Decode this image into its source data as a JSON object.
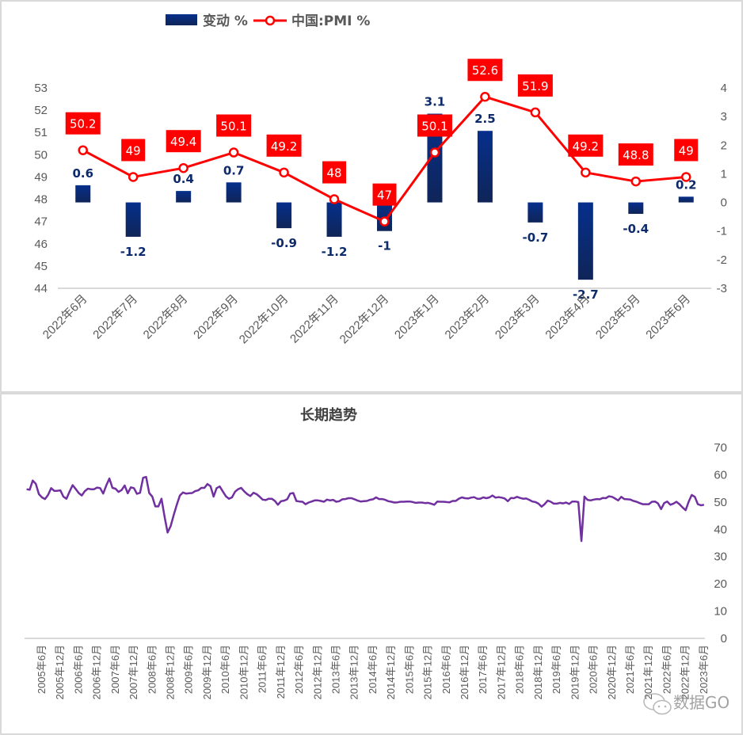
{
  "chart_data": [
    {
      "type": "bar+line",
      "title": "",
      "legend": {
        "position": "top-center",
        "entries": [
          {
            "name": "变动 %",
            "kind": "bar",
            "color": "#0d2a6b"
          },
          {
            "name": "中国:PMI %",
            "kind": "line-marker",
            "color": "#ff0000"
          }
        ]
      },
      "categories": [
        "2022年6月",
        "2022年7月",
        "2022年8月",
        "2022年9月",
        "2022年10月",
        "2022年11月",
        "2022年12月",
        "2023年1月",
        "2023年2月",
        "2023年3月",
        "2023年4月",
        "2023年5月",
        "2023年6月"
      ],
      "series": [
        {
          "name": "变动 %",
          "type": "bar",
          "axis": "right",
          "values": [
            0.6,
            -1.2,
            0.4,
            0.7,
            -0.9,
            -1.2,
            -1,
            3.1,
            2.5,
            -0.7,
            -2.7,
            -0.4,
            0.2
          ],
          "labels": [
            "0.6",
            "-1.2",
            "0.4",
            "0.7",
            "-0.9",
            "-1.2",
            "-1",
            "3.1",
            "2.5",
            "-0.7",
            "-2.7",
            "-0.4",
            "0.2"
          ]
        },
        {
          "name": "中国:PMI %",
          "type": "line",
          "axis": "left",
          "values": [
            50.2,
            49,
            49.4,
            50.1,
            49.2,
            48,
            47,
            50.1,
            52.6,
            51.9,
            49.2,
            48.8,
            49
          ],
          "labels": [
            "50.2",
            "49",
            "49.4",
            "50.1",
            "49.2",
            "48",
            "47",
            "50.1",
            "52.6",
            "51.9",
            "49.2",
            "48.8",
            "49"
          ]
        }
      ],
      "y_left": {
        "range": [
          44,
          53
        ],
        "ticks": [
          "53",
          "52",
          "51",
          "50",
          "49",
          "48",
          "47",
          "46",
          "45",
          "44"
        ]
      },
      "y_right": {
        "range": [
          -3,
          4
        ],
        "ticks": [
          "4",
          "3",
          "2",
          "1",
          "0",
          "-1",
          "-2",
          "-3"
        ]
      },
      "grid": false
    },
    {
      "type": "line",
      "title": "长期趋势",
      "series_name": "中国:PMI",
      "color": "#7030a0",
      "start": "2005-01",
      "end": "2023-06",
      "x_tick_labels": [
        "2005年6月",
        "2005年12月",
        "2006年6月",
        "2006年12月",
        "2007年6月",
        "2007年12月",
        "2008年6月",
        "2008年12月",
        "2009年6月",
        "2009年12月",
        "2010年6月",
        "2010年12月",
        "2011年6月",
        "2011年12月",
        "2012年6月",
        "2012年12月",
        "2013年6月",
        "2013年12月",
        "2014年6月",
        "2014年12月",
        "2015年6月",
        "2015年12月",
        "2016年6月",
        "2016年12月",
        "2017年6月",
        "2017年12月",
        "2018年6月",
        "2018年12月",
        "2019年6月",
        "2019年12月",
        "2020年6月",
        "2020年12月",
        "2021年6月",
        "2021年12月",
        "2022年6月",
        "2022年12月",
        "2023年6月"
      ],
      "y_right": {
        "range": [
          0,
          70
        ],
        "ticks": [
          "70",
          "60",
          "50",
          "40",
          "30",
          "20",
          "10",
          "0"
        ]
      },
      "grid": false,
      "values": [
        54.7,
        54.5,
        57.9,
        56.7,
        52.9,
        51.7,
        51.1,
        52.6,
        55.1,
        54.1,
        54.1,
        54.3,
        52.0,
        51.2,
        53.8,
        56.2,
        54.8,
        53.3,
        52.4,
        54.0,
        54.9,
        54.7,
        54.7,
        55.3,
        55.1,
        53.1,
        56.1,
        58.6,
        55.2,
        54.9,
        53.7,
        54.4,
        56.1,
        53.2,
        55.4,
        55.1,
        53.0,
        53.4,
        58.9,
        59.2,
        53.3,
        52.0,
        48.4,
        48.4,
        51.2,
        44.6,
        38.8,
        41.2,
        45.3,
        49.0,
        52.4,
        53.5,
        53.1,
        53.2,
        53.3,
        54.0,
        54.3,
        55.2,
        55.2,
        56.6,
        55.8,
        52.0,
        55.1,
        55.7,
        53.9,
        52.1,
        51.2,
        51.7,
        53.8,
        54.7,
        55.2,
        53.9,
        52.9,
        52.2,
        53.4,
        52.9,
        52.0,
        50.9,
        50.7,
        51.2,
        51.2,
        50.4,
        49.0,
        50.3,
        50.5,
        51.0,
        53.1,
        53.3,
        50.4,
        50.2,
        50.1,
        49.2,
        49.8,
        50.2,
        50.6,
        50.6,
        50.4,
        50.1,
        50.9,
        50.6,
        50.8,
        50.1,
        50.3,
        51.0,
        51.1,
        51.4,
        51.4,
        51.0,
        50.5,
        50.2,
        50.3,
        50.4,
        50.8,
        51.0,
        51.7,
        51.1,
        51.1,
        50.8,
        50.3,
        50.1,
        49.8,
        49.9,
        50.1,
        50.1,
        50.2,
        50.2,
        50.0,
        49.7,
        49.8,
        49.8,
        49.6,
        49.7,
        49.4,
        49.0,
        50.2,
        50.1,
        50.1,
        50.0,
        49.9,
        50.4,
        50.4,
        51.2,
        51.7,
        51.4,
        51.3,
        51.6,
        51.8,
        51.2,
        51.2,
        51.7,
        51.4,
        51.7,
        52.4,
        51.6,
        51.8,
        51.6,
        51.3,
        50.3,
        51.5,
        51.4,
        51.9,
        51.5,
        51.2,
        51.3,
        50.8,
        50.2,
        50.0,
        49.4,
        48.3,
        49.2,
        50.5,
        50.1,
        49.4,
        49.4,
        49.7,
        49.5,
        49.8,
        49.3,
        50.2,
        50.2,
        50.0,
        35.7,
        52.0,
        50.8,
        50.6,
        50.9,
        51.1,
        51.0,
        51.5,
        51.4,
        52.1,
        51.9,
        51.3,
        50.6,
        51.9,
        51.1,
        51.0,
        50.9,
        50.4,
        50.1,
        49.6,
        49.2,
        49.2,
        49.2,
        50.1,
        50.2,
        49.5,
        47.4,
        49.6,
        50.2,
        49.0,
        49.4,
        50.1,
        49.2,
        48.0,
        47.0,
        50.1,
        52.6,
        51.9,
        49.2,
        48.8,
        49.0
      ]
    }
  ],
  "watermark": {
    "icon": "wechat-icon",
    "text": "数据GO"
  }
}
